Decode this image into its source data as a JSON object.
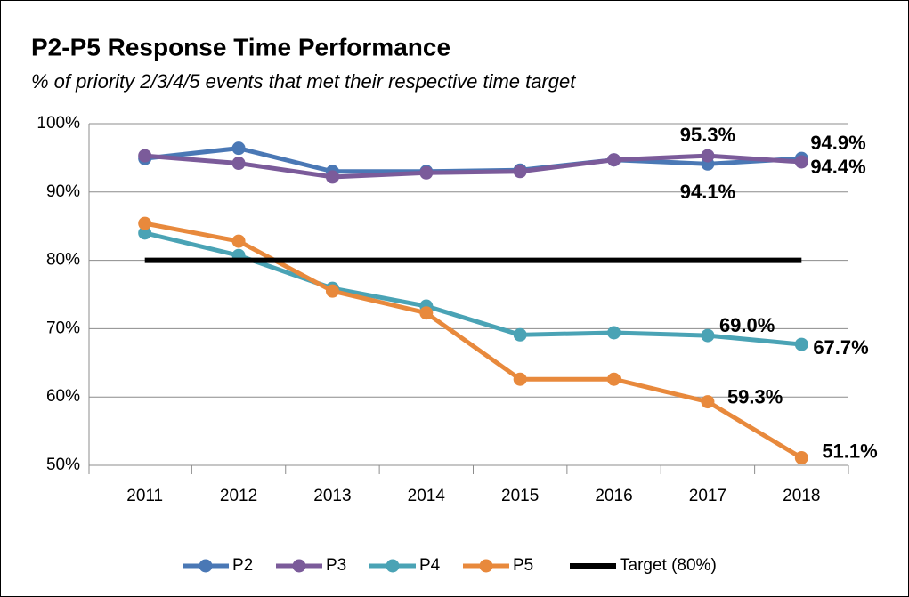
{
  "chart_data": {
    "type": "line",
    "title": "P2-P5 Response Time Performance",
    "subtitle": "% of priority 2/3/4/5 events that met their respective time target",
    "categories": [
      "2011",
      "2012",
      "2013",
      "2014",
      "2015",
      "2016",
      "2017",
      "2018"
    ],
    "series": [
      {
        "name": "P2",
        "color": "#4a78b5",
        "values": [
          94.9,
          96.4,
          93.0,
          93.0,
          93.2,
          94.7,
          94.1,
          94.9
        ],
        "value_labels": [
          null,
          null,
          null,
          null,
          null,
          null,
          "94.1%",
          "94.9%"
        ]
      },
      {
        "name": "P3",
        "color": "#7b5b9a",
        "values": [
          95.3,
          94.2,
          92.2,
          92.8,
          93.0,
          94.7,
          95.3,
          94.4
        ],
        "value_labels": [
          null,
          null,
          null,
          null,
          null,
          null,
          "95.3%",
          "94.4%"
        ]
      },
      {
        "name": "P4",
        "color": "#4aa3b5",
        "values": [
          84.0,
          80.7,
          75.9,
          73.3,
          69.1,
          69.4,
          69.0,
          67.7
        ],
        "value_labels": [
          null,
          null,
          null,
          null,
          null,
          null,
          "69.0%",
          "67.7%"
        ]
      },
      {
        "name": "P5",
        "color": "#e8893c",
        "values": [
          85.4,
          82.8,
          75.5,
          72.3,
          62.6,
          62.6,
          59.3,
          51.1
        ],
        "value_labels": [
          null,
          null,
          null,
          null,
          null,
          null,
          "59.3%",
          "51.1%"
        ]
      },
      {
        "name": "Target (80%)",
        "color": "#000000",
        "values": [
          80,
          80,
          80,
          80,
          80,
          80,
          80,
          80
        ]
      }
    ],
    "ylim": [
      50,
      100
    ],
    "yticks": [
      {
        "value": 50,
        "label": "50%"
      },
      {
        "value": 60,
        "label": "60%"
      },
      {
        "value": 70,
        "label": "70%"
      },
      {
        "value": 80,
        "label": "80%"
      },
      {
        "value": 90,
        "label": "90%"
      },
      {
        "value": 100,
        "label": "100%"
      }
    ],
    "grid": true,
    "legend": "bottom"
  }
}
